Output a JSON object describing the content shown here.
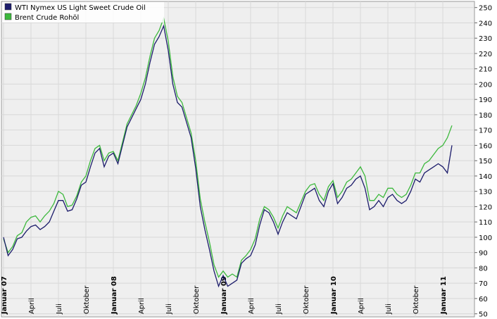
{
  "chart_data": {
    "type": "line",
    "categories": [
      "Januar 07",
      null,
      null,
      null,
      null,
      null,
      "April",
      null,
      null,
      null,
      null,
      null,
      "Juli",
      null,
      null,
      null,
      null,
      null,
      "Oktober",
      null,
      null,
      null,
      null,
      null,
      "Januar 08",
      null,
      null,
      null,
      null,
      null,
      "April",
      null,
      null,
      null,
      null,
      null,
      "Juli",
      null,
      null,
      null,
      null,
      null,
      "Oktober",
      null,
      null,
      null,
      null,
      null,
      "Januar 09",
      null,
      null,
      null,
      null,
      null,
      "April",
      null,
      null,
      null,
      null,
      null,
      "Juli",
      null,
      null,
      null,
      null,
      null,
      "Oktober",
      null,
      null,
      null,
      null,
      null,
      "Januar 10",
      null,
      null,
      null,
      null,
      null,
      "April",
      null,
      null,
      null,
      null,
      null,
      "Juli",
      null,
      null,
      null,
      null,
      null,
      "Oktober",
      null,
      null,
      null,
      null,
      null,
      "Januar 11",
      null,
      null
    ],
    "series": [
      {
        "name": "WTI Nymex US Light Sweet Crude Oil",
        "color": "#1c1c6b",
        "values": [
          100,
          88,
          92,
          99,
          100,
          104,
          107,
          108,
          105,
          107,
          110,
          117,
          124,
          124,
          117,
          118,
          125,
          134,
          136,
          146,
          155,
          158,
          146,
          153,
          155,
          148,
          160,
          172,
          178,
          184,
          190,
          200,
          214,
          226,
          231,
          238,
          222,
          200,
          188,
          185,
          175,
          165,
          145,
          120,
          105,
          92,
          78,
          68,
          75,
          68,
          70,
          72,
          83,
          86,
          88,
          95,
          108,
          118,
          116,
          110,
          102,
          110,
          116,
          114,
          112,
          120,
          128,
          130,
          132,
          124,
          120,
          130,
          135,
          122,
          126,
          132,
          134,
          138,
          140,
          132,
          118,
          120,
          124,
          120,
          126,
          128,
          124,
          122,
          124,
          130,
          138,
          136,
          142,
          144,
          146,
          148,
          146,
          142,
          160
        ]
      },
      {
        "name": "Brent Crude Rohöl",
        "color": "#3cb83c",
        "values": [
          99,
          90,
          94,
          101,
          103,
          110,
          113,
          114,
          110,
          114,
          117,
          122,
          130,
          128,
          120,
          121,
          127,
          136,
          140,
          150,
          158,
          160,
          150,
          155,
          156,
          150,
          162,
          174,
          180,
          186,
          194,
          204,
          218,
          230,
          235,
          243,
          228,
          205,
          192,
          188,
          178,
          168,
          150,
          125,
          110,
          97,
          82,
          74,
          78,
          74,
          76,
          74,
          85,
          88,
          92,
          99,
          112,
          120,
          118,
          113,
          106,
          114,
          120,
          118,
          116,
          123,
          130,
          134,
          135,
          128,
          124,
          133,
          137,
          126,
          130,
          136,
          138,
          142,
          146,
          140,
          124,
          124,
          128,
          126,
          132,
          132,
          128,
          126,
          128,
          134,
          142,
          142,
          148,
          150,
          154,
          158,
          160,
          165,
          173
        ]
      }
    ],
    "ylim": [
      48,
      254
    ],
    "yticks": [
      50,
      60,
      70,
      80,
      90,
      100,
      110,
      120,
      130,
      140,
      150,
      160,
      170,
      180,
      190,
      200,
      210,
      220,
      230,
      240,
      250
    ],
    "grid": true,
    "legend": "top-left"
  }
}
